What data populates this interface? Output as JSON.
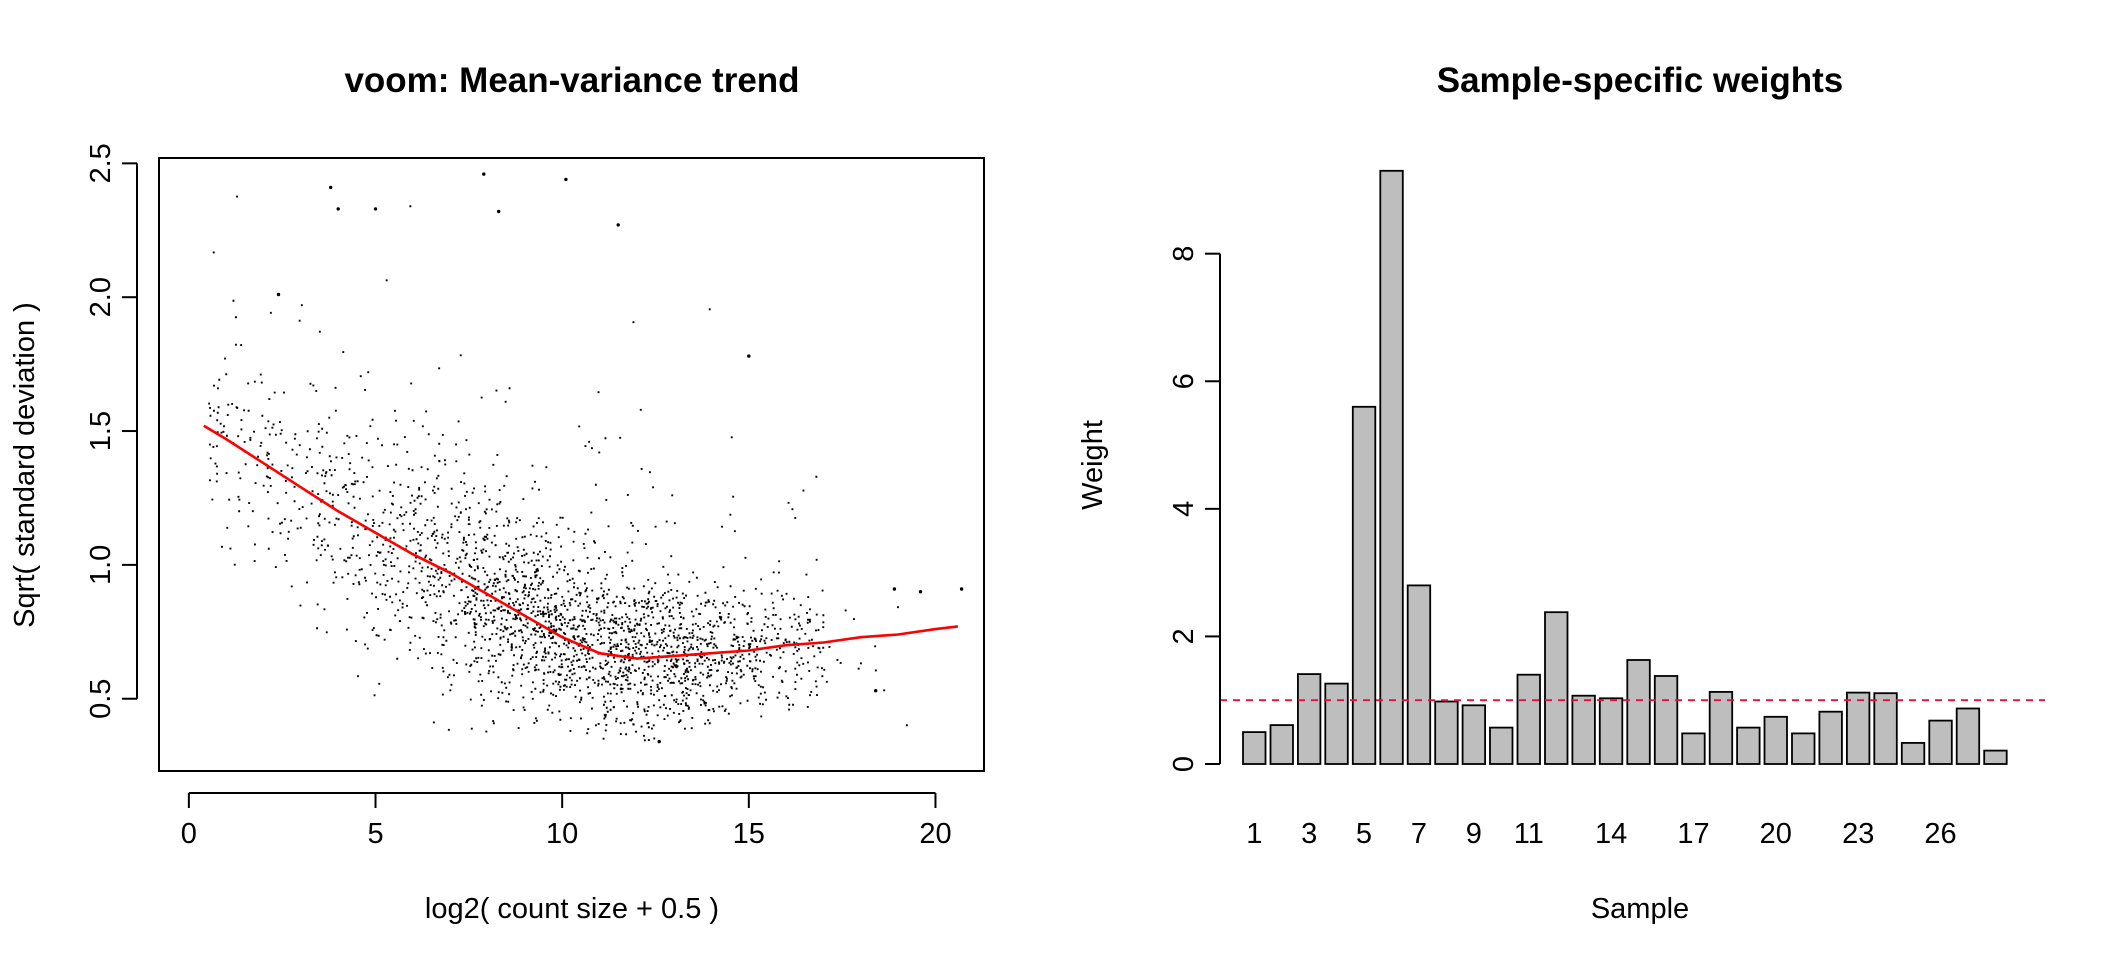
{
  "chart_data": [
    {
      "type": "scatter",
      "title": "voom: Mean-variance trend",
      "xlabel": "log2( count size + 0.5 )",
      "ylabel": "Sqrt( standard deviation )",
      "xlim": [
        -0.8,
        21.3
      ],
      "ylim": [
        0.23,
        2.52
      ],
      "xticks": [
        "0",
        "5",
        "10",
        "15",
        "20"
      ],
      "yticks": [
        "0.5",
        "1.0",
        "1.5",
        "2.0",
        "2.5"
      ],
      "grid": false,
      "point_color": "#000000",
      "trend_color": "#ff0000",
      "trend": {
        "x": [
          0.4,
          1,
          2,
          3,
          4,
          5,
          6,
          7,
          8,
          9,
          10,
          11,
          12,
          13,
          14,
          15,
          16,
          17,
          18,
          19,
          20,
          20.6
        ],
        "y": [
          1.52,
          1.47,
          1.38,
          1.29,
          1.2,
          1.12,
          1.04,
          0.97,
          0.89,
          0.81,
          0.73,
          0.67,
          0.65,
          0.66,
          0.67,
          0.68,
          0.7,
          0.71,
          0.73,
          0.74,
          0.76,
          0.77
        ]
      },
      "notable_points": {
        "x": [
          3.8,
          4.0,
          5.0,
          7.9,
          10.1,
          8.3,
          11.5,
          15.0,
          2.4,
          18.9,
          19.6,
          20.7,
          18.4,
          12.6
        ],
        "y": [
          2.41,
          2.33,
          2.33,
          2.46,
          2.44,
          2.32,
          2.27,
          1.78,
          2.01,
          0.91,
          0.9,
          0.91,
          0.53,
          0.34
        ]
      }
    },
    {
      "type": "bar",
      "title": "Sample-specific weights",
      "xlabel": "Sample",
      "ylabel": "Weight",
      "categories": [
        "1",
        "2",
        "3",
        "4",
        "5",
        "6",
        "7",
        "8",
        "9",
        "10",
        "11",
        "12",
        "13",
        "14",
        "15",
        "16",
        "17",
        "18",
        "19",
        "20",
        "21",
        "22",
        "23",
        "24",
        "25",
        "26",
        "27",
        "28"
      ],
      "xtick_labels": [
        "1",
        "3",
        "5",
        "7",
        "9",
        "11",
        "14",
        "17",
        "20",
        "23",
        "26"
      ],
      "values": [
        0.5,
        0.61,
        1.41,
        1.26,
        5.6,
        9.3,
        2.8,
        0.98,
        0.92,
        0.57,
        1.4,
        2.38,
        1.07,
        1.03,
        1.63,
        1.38,
        0.48,
        1.13,
        0.57,
        0.74,
        0.48,
        0.82,
        1.12,
        1.11,
        0.33,
        0.68,
        0.87,
        0.21
      ],
      "ylim": [
        0,
        9.5
      ],
      "yticks": [
        "0",
        "2",
        "4",
        "6",
        "8"
      ],
      "reference_line": 1,
      "bar_color": "#bebebe",
      "reference_color": "#dc143c",
      "grid": false
    }
  ]
}
